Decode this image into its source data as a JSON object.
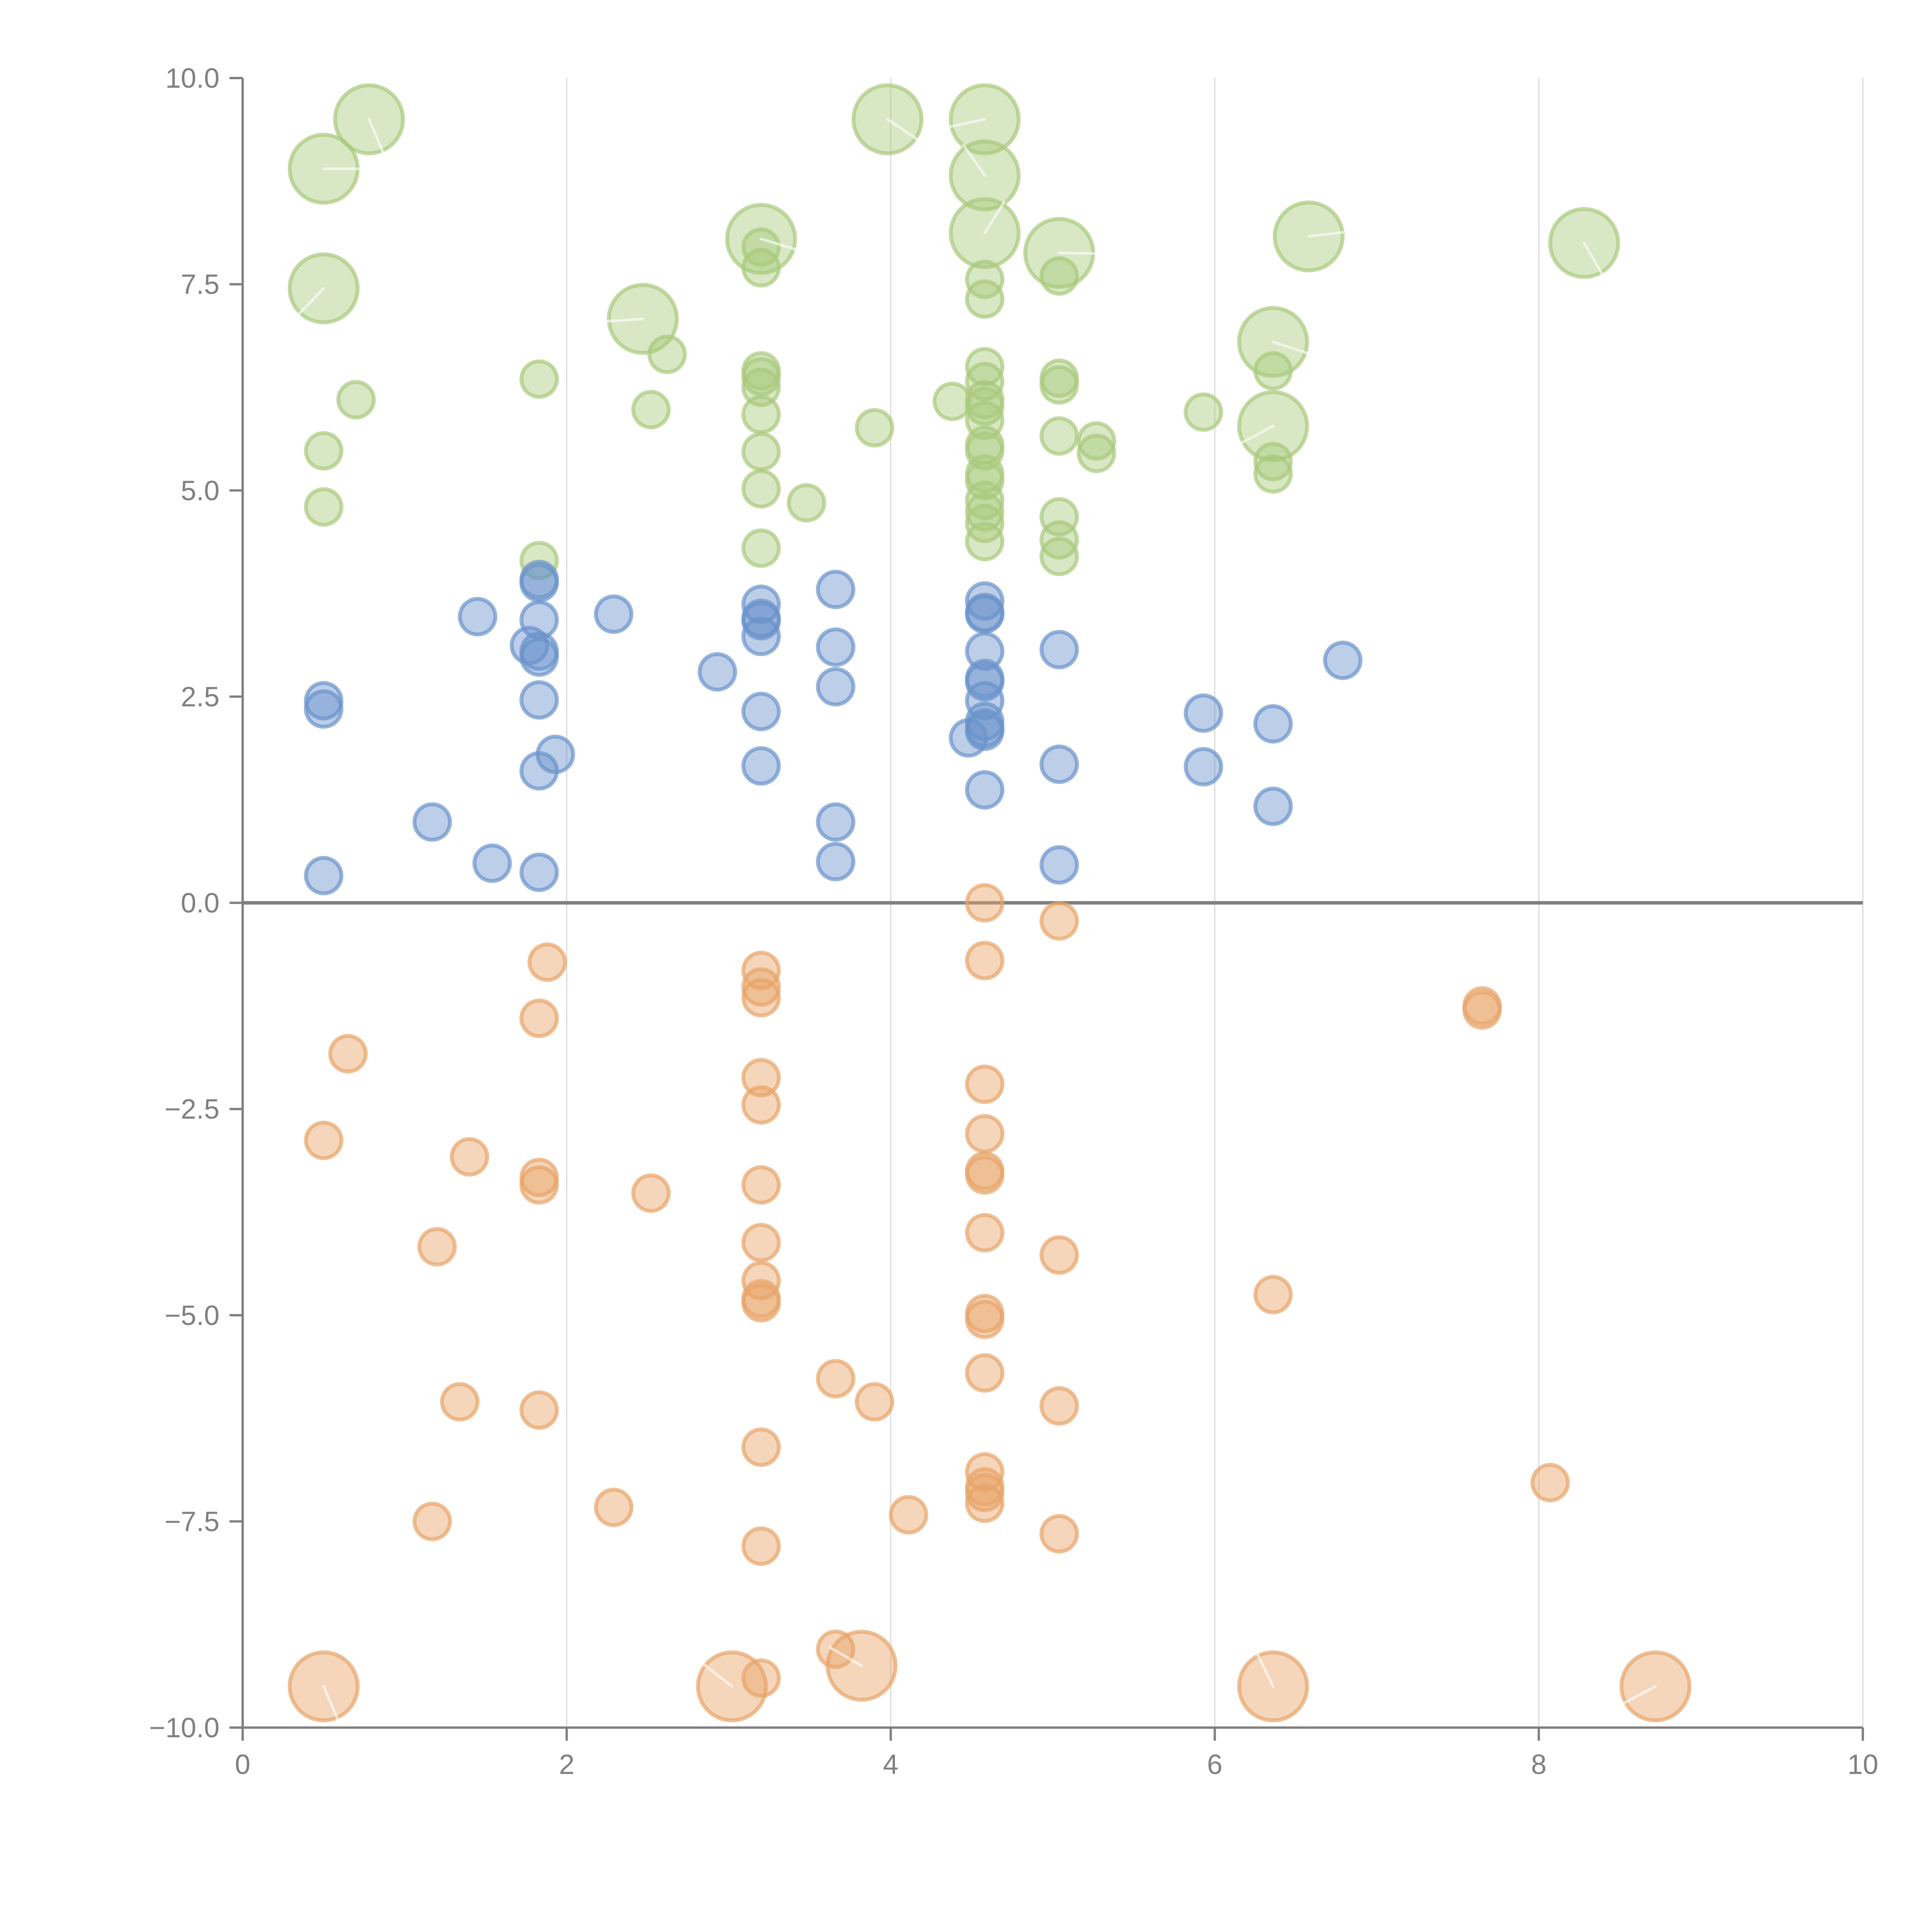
{
  "chart_data": {
    "type": "scatter",
    "title": "",
    "xlabel": "",
    "ylabel": "",
    "xlim": [
      0,
      10
    ],
    "ylim": [
      -10,
      10
    ],
    "grid": "vertical",
    "legend": "none",
    "x_ticks": [
      "0",
      "2",
      "4",
      "6",
      "8",
      "10"
    ],
    "x_tick_values": [
      0,
      2,
      4,
      6,
      8,
      10
    ],
    "y_ticks": [
      "10.0",
      "7.5",
      "5.0",
      "2.5",
      "0.0",
      "−2.5",
      "−5.0",
      "−7.5",
      "−10.0"
    ],
    "y_tick_values": [
      10,
      7.5,
      5,
      2.5,
      0,
      -2.5,
      -5,
      -7.5,
      -10
    ],
    "reference_line_y": 0,
    "colors": {
      "green": "#a9c97c",
      "blue": "#6a93cb",
      "orange": "#e8a468",
      "axis": "#808080",
      "grid": "#d9d9d9"
    },
    "series": [
      {
        "name": "green",
        "color_key": "green",
        "points": [
          {
            "x": 0.5,
            "y": 8.9,
            "size": "large"
          },
          {
            "x": 0.78,
            "y": 9.5,
            "size": "large"
          },
          {
            "x": 0.5,
            "y": 7.45,
            "size": "large"
          },
          {
            "x": 0.7,
            "y": 6.1
          },
          {
            "x": 0.5,
            "y": 5.48
          },
          {
            "x": 0.5,
            "y": 4.8
          },
          {
            "x": 1.83,
            "y": 6.35
          },
          {
            "x": 1.83,
            "y": 4.15
          },
          {
            "x": 2.47,
            "y": 7.08,
            "size": "large"
          },
          {
            "x": 2.62,
            "y": 6.65
          },
          {
            "x": 2.52,
            "y": 5.98
          },
          {
            "x": 3.2,
            "y": 8.05,
            "size": "large"
          },
          {
            "x": 3.2,
            "y": 7.95
          },
          {
            "x": 3.2,
            "y": 7.7
          },
          {
            "x": 3.2,
            "y": 6.45
          },
          {
            "x": 3.2,
            "y": 6.38
          },
          {
            "x": 3.2,
            "y": 6.25
          },
          {
            "x": 3.2,
            "y": 5.92
          },
          {
            "x": 3.2,
            "y": 5.47
          },
          {
            "x": 3.2,
            "y": 5.02
          },
          {
            "x": 3.2,
            "y": 4.3
          },
          {
            "x": 3.48,
            "y": 4.85
          },
          {
            "x": 3.98,
            "y": 9.5,
            "size": "large"
          },
          {
            "x": 3.9,
            "y": 5.76
          },
          {
            "x": 4.58,
            "y": 9.5,
            "size": "large"
          },
          {
            "x": 4.58,
            "y": 8.82,
            "size": "large"
          },
          {
            "x": 4.58,
            "y": 8.12,
            "size": "large"
          },
          {
            "x": 4.58,
            "y": 7.56
          },
          {
            "x": 4.58,
            "y": 7.32
          },
          {
            "x": 4.38,
            "y": 6.08
          },
          {
            "x": 4.58,
            "y": 6.5
          },
          {
            "x": 4.58,
            "y": 6.32
          },
          {
            "x": 4.58,
            "y": 6.1
          },
          {
            "x": 4.58,
            "y": 6.02
          },
          {
            "x": 4.58,
            "y": 5.85
          },
          {
            "x": 4.58,
            "y": 5.55
          },
          {
            "x": 4.58,
            "y": 5.48
          },
          {
            "x": 4.58,
            "y": 5.2
          },
          {
            "x": 4.58,
            "y": 5.12
          },
          {
            "x": 4.58,
            "y": 4.88
          },
          {
            "x": 4.58,
            "y": 4.74
          },
          {
            "x": 4.58,
            "y": 4.6
          },
          {
            "x": 4.58,
            "y": 4.38
          },
          {
            "x": 5.04,
            "y": 7.88,
            "size": "large"
          },
          {
            "x": 5.04,
            "y": 7.6
          },
          {
            "x": 5.04,
            "y": 6.36
          },
          {
            "x": 5.04,
            "y": 6.28
          },
          {
            "x": 5.04,
            "y": 5.66
          },
          {
            "x": 5.04,
            "y": 4.68
          },
          {
            "x": 5.04,
            "y": 4.4
          },
          {
            "x": 5.04,
            "y": 4.2
          },
          {
            "x": 5.27,
            "y": 5.6
          },
          {
            "x": 5.27,
            "y": 5.45
          },
          {
            "x": 5.93,
            "y": 5.95
          },
          {
            "x": 6.36,
            "y": 6.8,
            "size": "large"
          },
          {
            "x": 6.36,
            "y": 6.45
          },
          {
            "x": 6.36,
            "y": 5.78,
            "size": "large"
          },
          {
            "x": 6.36,
            "y": 5.35
          },
          {
            "x": 6.36,
            "y": 5.2
          },
          {
            "x": 6.58,
            "y": 8.08,
            "size": "large"
          },
          {
            "x": 8.28,
            "y": 8.0,
            "size": "large"
          }
        ]
      },
      {
        "name": "blue",
        "color_key": "blue",
        "points": [
          {
            "x": 0.5,
            "y": 2.45
          },
          {
            "x": 0.5,
            "y": 2.35
          },
          {
            "x": 0.5,
            "y": 0.33
          },
          {
            "x": 1.17,
            "y": 0.98
          },
          {
            "x": 1.45,
            "y": 3.47
          },
          {
            "x": 1.54,
            "y": 0.48
          },
          {
            "x": 1.77,
            "y": 3.12
          },
          {
            "x": 1.83,
            "y": 3.92
          },
          {
            "x": 1.83,
            "y": 3.88
          },
          {
            "x": 1.83,
            "y": 3.43
          },
          {
            "x": 1.83,
            "y": 3.05
          },
          {
            "x": 1.83,
            "y": 2.98
          },
          {
            "x": 1.83,
            "y": 2.46
          },
          {
            "x": 1.83,
            "y": 1.6
          },
          {
            "x": 1.93,
            "y": 1.8
          },
          {
            "x": 1.83,
            "y": 0.37
          },
          {
            "x": 2.29,
            "y": 3.5
          },
          {
            "x": 2.93,
            "y": 2.8
          },
          {
            "x": 3.2,
            "y": 3.62
          },
          {
            "x": 3.2,
            "y": 3.45
          },
          {
            "x": 3.2,
            "y": 3.42
          },
          {
            "x": 3.2,
            "y": 3.23
          },
          {
            "x": 3.2,
            "y": 2.32
          },
          {
            "x": 3.2,
            "y": 1.66
          },
          {
            "x": 3.66,
            "y": 3.8
          },
          {
            "x": 3.66,
            "y": 3.1
          },
          {
            "x": 3.66,
            "y": 2.62
          },
          {
            "x": 3.66,
            "y": 0.98
          },
          {
            "x": 3.66,
            "y": 0.5
          },
          {
            "x": 4.48,
            "y": 2.0
          },
          {
            "x": 4.58,
            "y": 3.66
          },
          {
            "x": 4.58,
            "y": 3.52
          },
          {
            "x": 4.58,
            "y": 3.5
          },
          {
            "x": 4.58,
            "y": 3.05
          },
          {
            "x": 4.58,
            "y": 2.72
          },
          {
            "x": 4.58,
            "y": 2.68
          },
          {
            "x": 4.58,
            "y": 2.45
          },
          {
            "x": 4.58,
            "y": 2.2
          },
          {
            "x": 4.58,
            "y": 2.12
          },
          {
            "x": 4.58,
            "y": 2.08
          },
          {
            "x": 4.58,
            "y": 1.37
          },
          {
            "x": 5.04,
            "y": 3.07
          },
          {
            "x": 5.04,
            "y": 1.68
          },
          {
            "x": 5.04,
            "y": 0.46
          },
          {
            "x": 5.93,
            "y": 2.3
          },
          {
            "x": 5.93,
            "y": 1.65
          },
          {
            "x": 6.36,
            "y": 2.17
          },
          {
            "x": 6.36,
            "y": 1.17
          },
          {
            "x": 6.79,
            "y": 2.94
          }
        ]
      },
      {
        "name": "orange",
        "color_key": "orange",
        "points": [
          {
            "x": 0.5,
            "y": -2.88
          },
          {
            "x": 0.5,
            "y": -9.5,
            "size": "large"
          },
          {
            "x": 0.65,
            "y": -1.83
          },
          {
            "x": 1.17,
            "y": -7.5
          },
          {
            "x": 1.2,
            "y": -4.17
          },
          {
            "x": 1.34,
            "y": -6.05
          },
          {
            "x": 1.4,
            "y": -3.08
          },
          {
            "x": 1.83,
            "y": -1.4
          },
          {
            "x": 1.83,
            "y": -3.33
          },
          {
            "x": 1.83,
            "y": -3.42
          },
          {
            "x": 1.83,
            "y": -6.15
          },
          {
            "x": 1.88,
            "y": -0.72
          },
          {
            "x": 2.29,
            "y": -7.33
          },
          {
            "x": 2.52,
            "y": -3.52
          },
          {
            "x": 3.02,
            "y": -9.5,
            "size": "large"
          },
          {
            "x": 3.2,
            "y": -0.82
          },
          {
            "x": 3.2,
            "y": -1.02
          },
          {
            "x": 3.2,
            "y": -1.15
          },
          {
            "x": 3.2,
            "y": -2.12
          },
          {
            "x": 3.2,
            "y": -2.45
          },
          {
            "x": 3.2,
            "y": -3.42
          },
          {
            "x": 3.2,
            "y": -4.12
          },
          {
            "x": 3.2,
            "y": -4.58
          },
          {
            "x": 3.2,
            "y": -4.8
          },
          {
            "x": 3.2,
            "y": -4.85
          },
          {
            "x": 3.2,
            "y": -6.6
          },
          {
            "x": 3.2,
            "y": -7.8
          },
          {
            "x": 3.2,
            "y": -9.4
          },
          {
            "x": 3.66,
            "y": -5.77
          },
          {
            "x": 3.66,
            "y": -9.05
          },
          {
            "x": 3.82,
            "y": -9.25,
            "size": "large"
          },
          {
            "x": 3.9,
            "y": -6.05
          },
          {
            "x": 4.11,
            "y": -7.42
          },
          {
            "x": 4.58,
            "y": 0.0
          },
          {
            "x": 4.58,
            "y": -0.7
          },
          {
            "x": 4.58,
            "y": -2.2
          },
          {
            "x": 4.58,
            "y": -2.8
          },
          {
            "x": 4.58,
            "y": -3.25
          },
          {
            "x": 4.58,
            "y": -3.3
          },
          {
            "x": 4.58,
            "y": -4.0
          },
          {
            "x": 4.58,
            "y": -4.98
          },
          {
            "x": 4.58,
            "y": -5.05
          },
          {
            "x": 4.58,
            "y": -5.7
          },
          {
            "x": 4.58,
            "y": -6.9
          },
          {
            "x": 4.58,
            "y": -7.08
          },
          {
            "x": 4.58,
            "y": -7.15
          },
          {
            "x": 4.58,
            "y": -7.28
          },
          {
            "x": 5.04,
            "y": -0.22
          },
          {
            "x": 5.04,
            "y": -4.27
          },
          {
            "x": 5.04,
            "y": -6.1
          },
          {
            "x": 5.04,
            "y": -7.65
          },
          {
            "x": 6.36,
            "y": -4.75
          },
          {
            "x": 6.36,
            "y": -9.5,
            "size": "large"
          },
          {
            "x": 7.65,
            "y": -1.25
          },
          {
            "x": 7.65,
            "y": -1.3
          },
          {
            "x": 8.07,
            "y": -7.03
          },
          {
            "x": 8.72,
            "y": -9.5,
            "size": "large"
          }
        ]
      }
    ],
    "annotations_note": "White annotation labels with leader lines accompany large bubbles; label text is white-on-white and not legible."
  }
}
